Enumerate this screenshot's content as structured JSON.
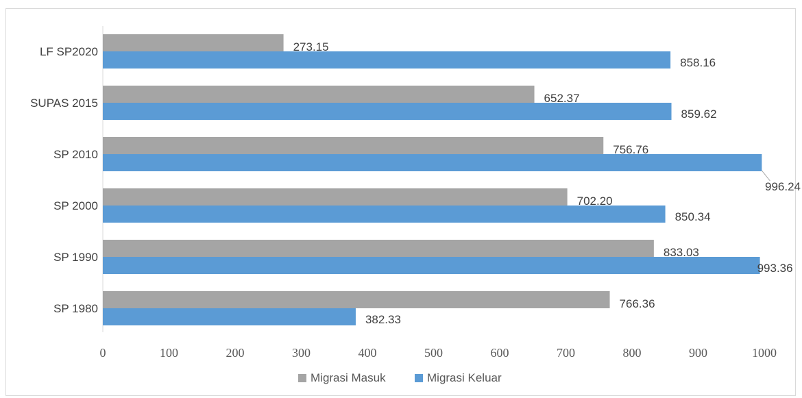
{
  "chart_data": {
    "type": "bar",
    "orientation": "horizontal",
    "categories": [
      "SP 1980",
      "SP 1990",
      "SP 2000",
      "SP 2010",
      "SUPAS 2015",
      "LF SP2020"
    ],
    "series": [
      {
        "name": "Migrasi Masuk",
        "color": "#a5a5a5",
        "values": [
          766.36,
          833.03,
          702.2,
          756.76,
          652.37,
          273.15
        ],
        "labels": [
          "766.36",
          "833.03",
          "702.20",
          "756.76",
          "652.37",
          "273.15"
        ]
      },
      {
        "name": "Migrasi Keluar",
        "color": "#5b9bd5",
        "values": [
          382.33,
          993.36,
          850.34,
          996.24,
          859.62,
          858.16
        ],
        "labels": [
          "382.33",
          "993.36",
          "850.34",
          "996.24",
          "859.62",
          "858.16"
        ]
      }
    ],
    "xlim": [
      0,
      1000
    ],
    "ticks": [
      "0",
      "100",
      "200",
      "300",
      "400",
      "500",
      "600",
      "700",
      "800",
      "900",
      "1000"
    ],
    "grid": false,
    "legend_position": "bottom"
  }
}
